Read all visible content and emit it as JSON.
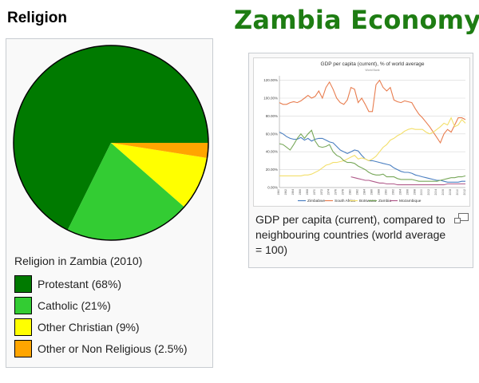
{
  "religion": {
    "heading": "Religion",
    "caption": "Religion in Zambia (2010)",
    "legend": [
      {
        "label": "Protestant (68%)",
        "color": "#007a00"
      },
      {
        "label": "Catholic (21%)",
        "color": "#33cc33"
      },
      {
        "label": "Other Christian (9%)",
        "color": "#ffff00"
      },
      {
        "label": "Other or Non Religious (2.5%)",
        "color": "#ffa500"
      }
    ]
  },
  "economy": {
    "title": "Zambia Economy",
    "gdp_caption": "GDP per capita (current), compared to neighbouring countries (world average = 100)",
    "magnify_icon": "magnify-clip-icon"
  },
  "chart_data": [
    {
      "type": "pie",
      "caption": "Religion in Zambia (2010)",
      "labels": [
        "Protestant",
        "Catholic",
        "Other Christian",
        "Other or Non Religious"
      ],
      "values": [
        68,
        21,
        9,
        2.5
      ],
      "colors": [
        "#007a00",
        "#33cc33",
        "#ffff00",
        "#ffa500"
      ],
      "legend": "bottom"
    },
    {
      "type": "line",
      "title": "GDP per capita (current), % of world average",
      "subtitle": "World Bank",
      "x": [
        1960,
        1961,
        1962,
        1963,
        1964,
        1965,
        1966,
        1967,
        1968,
        1969,
        1970,
        1971,
        1972,
        1973,
        1974,
        1975,
        1976,
        1977,
        1978,
        1979,
        1980,
        1981,
        1982,
        1983,
        1984,
        1985,
        1986,
        1987,
        1988,
        1989,
        1990,
        1991,
        1992,
        1993,
        1994,
        1995,
        1996,
        1997,
        1998,
        1999,
        2000,
        2001,
        2002,
        2003,
        2004,
        2005,
        2006,
        2007,
        2008,
        2009,
        2010,
        2011,
        2012
      ],
      "x_tick_labels": [
        "1960",
        "1962",
        "1964",
        "1966",
        "1968",
        "1970",
        "1972",
        "1974",
        "1976",
        "1978",
        "1980",
        "1982",
        "1984",
        "1986",
        "1988",
        "1990",
        "1992",
        "1994",
        "1996",
        "1998",
        "2000",
        "2002",
        "2004",
        "2006",
        "2008",
        "2010",
        "2012"
      ],
      "y_tick_labels": [
        "0.00%",
        "20.00%",
        "40.00%",
        "60.00%",
        "80.00%",
        "100.00%",
        "120.00%"
      ],
      "ylim": [
        0,
        125
      ],
      "grid": true,
      "legend": "bottom",
      "series": [
        {
          "name": "Zimbabwe",
          "color": "#4a7fc1",
          "values": [
            62,
            60,
            57,
            55,
            54,
            54,
            56,
            53,
            55,
            52,
            54,
            55,
            55,
            53,
            51,
            50,
            46,
            42,
            40,
            38,
            40,
            42,
            41,
            36,
            32,
            30,
            30,
            29,
            28,
            27,
            26,
            25,
            22,
            20,
            18,
            17,
            17,
            16,
            14,
            13,
            12,
            11,
            10,
            9,
            8,
            8,
            7,
            6,
            6,
            6,
            6,
            7,
            7
          ]
        },
        {
          "name": "South Africa",
          "color": "#e87d4f",
          "values": [
            95,
            93,
            93,
            95,
            96,
            95,
            97,
            100,
            103,
            100,
            102,
            108,
            100,
            112,
            118,
            110,
            100,
            95,
            93,
            98,
            112,
            110,
            95,
            100,
            93,
            85,
            85,
            115,
            120,
            112,
            108,
            112,
            98,
            96,
            95,
            97,
            96,
            95,
            88,
            82,
            78,
            73,
            68,
            62,
            56,
            50,
            60,
            65,
            62,
            70,
            78,
            78,
            76
          ]
        },
        {
          "name": "Botswana",
          "color": "#f3df6b",
          "values": [
            13,
            13,
            13,
            13,
            13,
            13,
            13,
            14,
            14,
            15,
            17,
            19,
            22,
            25,
            26,
            28,
            28,
            29,
            30,
            32,
            34,
            36,
            32,
            33,
            32,
            30,
            32,
            35,
            40,
            45,
            48,
            53,
            55,
            58,
            60,
            63,
            65,
            66,
            65,
            65,
            65,
            62,
            60,
            62,
            65,
            68,
            72,
            70,
            78,
            68,
            70,
            76,
            72
          ]
        },
        {
          "name": "Zambia",
          "color": "#78a85a",
          "values": [
            49,
            48,
            45,
            42,
            48,
            55,
            60,
            55,
            60,
            64,
            52,
            46,
            45,
            46,
            48,
            40,
            36,
            34,
            30,
            28,
            28,
            27,
            24,
            22,
            20,
            17,
            15,
            14,
            14,
            15,
            12,
            12,
            12,
            10,
            9,
            9,
            9,
            9,
            8,
            7,
            7,
            7,
            7,
            7,
            7,
            8,
            9,
            10,
            11,
            11,
            12,
            12,
            13
          ]
        },
        {
          "name": "Mozambique",
          "color": "#b05a8a",
          "values": [
            null,
            null,
            null,
            null,
            null,
            null,
            null,
            null,
            null,
            null,
            null,
            null,
            null,
            null,
            null,
            null,
            null,
            null,
            null,
            null,
            12,
            11,
            10,
            9,
            8,
            8,
            7,
            6,
            5,
            5,
            4,
            4,
            4,
            3,
            3,
            3,
            3,
            3,
            3,
            3,
            3,
            3,
            3,
            3,
            3,
            3,
            3,
            4,
            4,
            4,
            4,
            4,
            4
          ]
        }
      ]
    }
  ]
}
